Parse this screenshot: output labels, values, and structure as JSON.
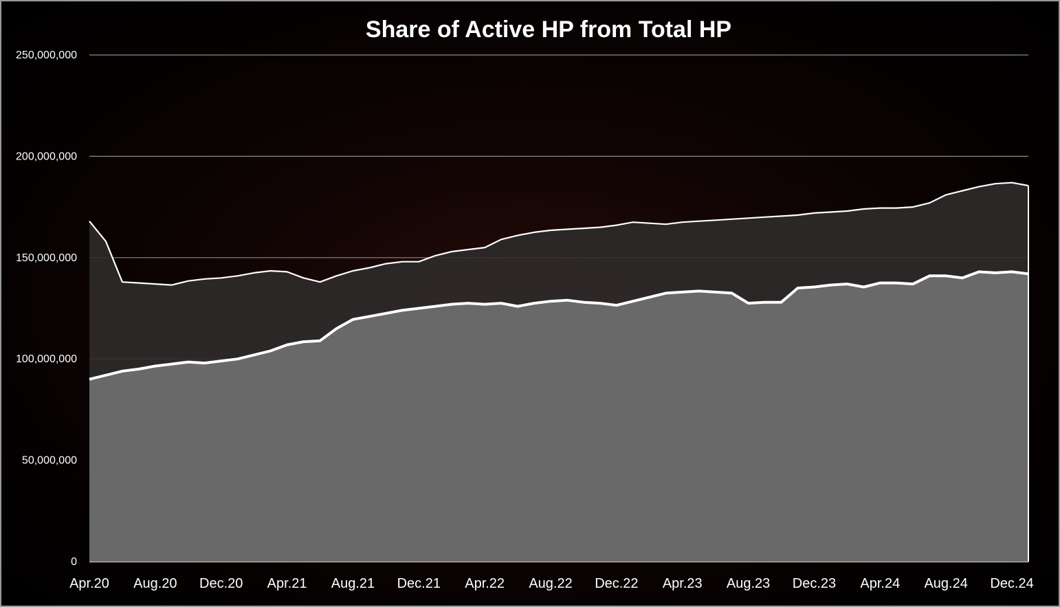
{
  "chart_data": {
    "type": "area",
    "title": "Share of Active HP from Total HP",
    "xlabel": "",
    "ylabel": "",
    "ylim": [
      0,
      250000000
    ],
    "y_ticks": [
      0,
      50000000,
      100000000,
      150000000,
      200000000,
      250000000
    ],
    "y_tick_labels": [
      "0",
      "50,000,000",
      "100,000,000",
      "150,000,000",
      "200,000,000",
      "250,000,000"
    ],
    "x_tick_labels": [
      "Apr.20",
      "Aug.20",
      "Dec.20",
      "Apr.21",
      "Aug.21",
      "Dec.21",
      "Apr.22",
      "Aug.22",
      "Dec.22",
      "Apr.23",
      "Aug.23",
      "Dec.23",
      "Apr.24",
      "Aug.24",
      "Dec.24"
    ],
    "x_range_months": [
      "Apr.20",
      "Jan.25"
    ],
    "grid": true,
    "legend": "none",
    "colors": {
      "total_fill": "#2f2b2b",
      "active_fill": "#6d6d6d",
      "line": "#ffffff",
      "grid": "#8a8a8a"
    },
    "series": [
      {
        "key": "total_hp",
        "x": [
          "Apr.20",
          "May.20",
          "Jun.20",
          "Jul.20",
          "Aug.20",
          "Sep.20",
          "Oct.20",
          "Nov.20",
          "Dec.20",
          "Jan.21",
          "Feb.21",
          "Mar.21",
          "Apr.21",
          "May.21",
          "Jun.21",
          "Jul.21",
          "Aug.21",
          "Sep.21",
          "Oct.21",
          "Nov.21",
          "Dec.21",
          "Jan.22",
          "Feb.22",
          "Mar.22",
          "Apr.22",
          "May.22",
          "Jun.22",
          "Jul.22",
          "Aug.22",
          "Sep.22",
          "Oct.22",
          "Nov.22",
          "Dec.22",
          "Jan.23",
          "Feb.23",
          "Mar.23",
          "Apr.23",
          "May.23",
          "Jun.23",
          "Jul.23",
          "Aug.23",
          "Sep.23",
          "Oct.23",
          "Nov.23",
          "Dec.23",
          "Jan.24",
          "Feb.24",
          "Mar.24",
          "Apr.24",
          "May.24",
          "Jun.24",
          "Jul.24",
          "Aug.24",
          "Sep.24",
          "Oct.24",
          "Nov.24",
          "Dec.24",
          "Jan.25"
        ],
        "values": [
          168000000,
          158000000,
          138000000,
          137500000,
          137000000,
          136500000,
          138500000,
          139500000,
          140000000,
          141000000,
          142500000,
          143500000,
          143000000,
          140000000,
          138000000,
          141000000,
          143500000,
          145000000,
          147000000,
          148000000,
          148000000,
          151000000,
          153000000,
          154000000,
          155000000,
          159000000,
          161000000,
          162500000,
          163500000,
          164000000,
          164500000,
          165000000,
          166000000,
          167500000,
          167000000,
          166500000,
          167500000,
          168000000,
          168500000,
          169000000,
          169500000,
          170000000,
          170500000,
          171000000,
          172000000,
          172500000,
          173000000,
          174000000,
          174500000,
          174500000,
          175000000,
          177000000,
          181000000,
          183000000,
          185000000,
          186500000,
          187000000,
          185500000
        ]
      },
      {
        "key": "active_hp",
        "x": [
          "Apr.20",
          "May.20",
          "Jun.20",
          "Jul.20",
          "Aug.20",
          "Sep.20",
          "Oct.20",
          "Nov.20",
          "Dec.20",
          "Jan.21",
          "Feb.21",
          "Mar.21",
          "Apr.21",
          "May.21",
          "Jun.21",
          "Jul.21",
          "Aug.21",
          "Sep.21",
          "Oct.21",
          "Nov.21",
          "Dec.21",
          "Jan.22",
          "Feb.22",
          "Mar.22",
          "Apr.22",
          "May.22",
          "Jun.22",
          "Jul.22",
          "Aug.22",
          "Sep.22",
          "Oct.22",
          "Nov.22",
          "Dec.22",
          "Jan.23",
          "Feb.23",
          "Mar.23",
          "Apr.23",
          "May.23",
          "Jun.23",
          "Jul.23",
          "Aug.23",
          "Sep.23",
          "Oct.23",
          "Nov.23",
          "Dec.23",
          "Jan.24",
          "Feb.24",
          "Mar.24",
          "Apr.24",
          "May.24",
          "Jun.24",
          "Jul.24",
          "Aug.24",
          "Sep.24",
          "Oct.24",
          "Nov.24",
          "Dec.24",
          "Jan.25"
        ],
        "values": [
          90000000,
          92000000,
          94000000,
          95000000,
          96500000,
          97500000,
          98500000,
          98000000,
          99000000,
          100000000,
          102000000,
          104000000,
          107000000,
          108500000,
          109000000,
          115000000,
          119500000,
          121000000,
          122500000,
          124000000,
          125000000,
          126000000,
          127000000,
          127500000,
          127000000,
          127500000,
          126000000,
          127500000,
          128500000,
          129000000,
          128000000,
          127500000,
          126500000,
          128500000,
          130500000,
          132500000,
          133000000,
          133500000,
          133000000,
          132500000,
          127500000,
          128000000,
          128000000,
          135000000,
          135500000,
          136500000,
          137000000,
          135500000,
          137500000,
          137500000,
          137000000,
          141000000,
          141000000,
          140000000,
          143000000,
          142500000,
          143000000,
          142000000
        ]
      }
    ]
  }
}
